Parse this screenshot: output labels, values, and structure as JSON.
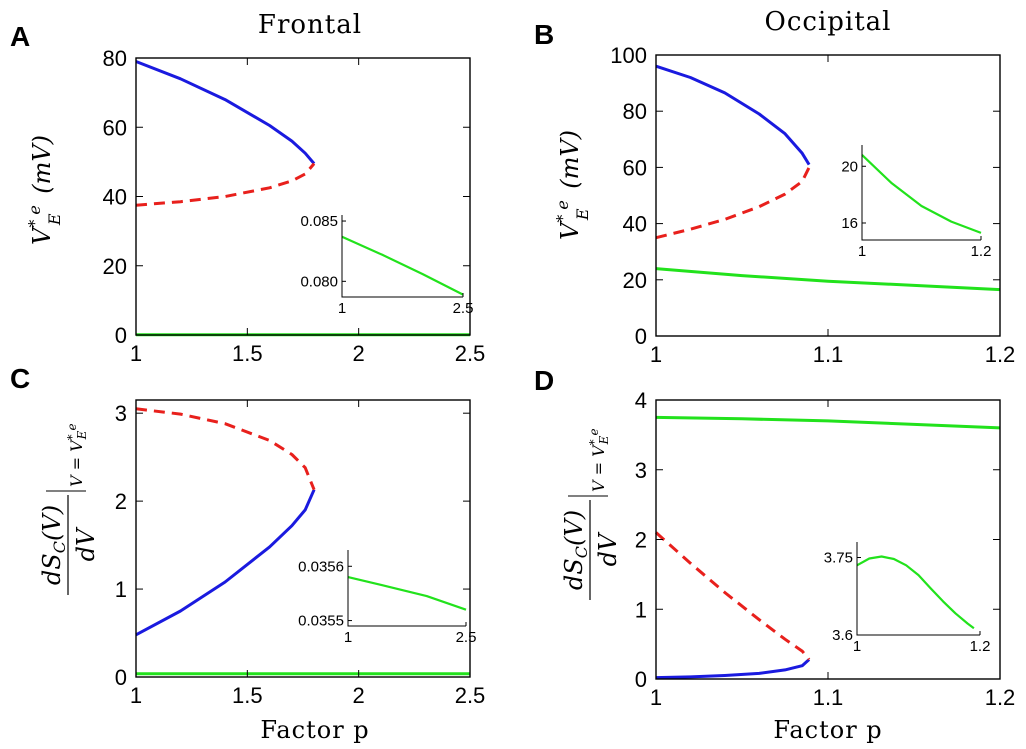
{
  "colors": {
    "blue": "#1a1adf",
    "red": "#e8201c",
    "green": "#22e21c"
  },
  "column_titles": [
    "Frontal",
    "Occipital"
  ],
  "x_axis_label": "Factor p",
  "chart_data": [
    {
      "panel": "A",
      "type": "line",
      "xlim": [
        1,
        2.5
      ],
      "ylim": [
        0,
        80
      ],
      "xticks": [
        1,
        1.5,
        2,
        2.5
      ],
      "yticks": [
        0,
        20,
        40,
        60,
        80
      ],
      "xtick_labels": [
        "1",
        "1.5",
        "2",
        "2.5"
      ],
      "ytick_labels": [
        "0",
        "20",
        "40",
        "60",
        "80"
      ],
      "ylabel": "V*_E^e (mV)",
      "series": [
        {
          "color": "blue",
          "dash": false,
          "x": [
            1,
            1.2,
            1.4,
            1.6,
            1.7,
            1.76,
            1.8
          ],
          "y": [
            79,
            74,
            68,
            60.5,
            56,
            52.5,
            49.5
          ]
        },
        {
          "color": "red",
          "dash": true,
          "x": [
            1,
            1.2,
            1.4,
            1.6,
            1.7,
            1.76,
            1.8
          ],
          "y": [
            37.5,
            38.5,
            40,
            42.5,
            44.5,
            46.5,
            49.5
          ]
        },
        {
          "color": "green",
          "dash": false,
          "x": [
            1,
            2.5
          ],
          "y": [
            0.08,
            0.08
          ]
        }
      ],
      "inset": {
        "xlim": [
          1,
          2.5
        ],
        "ylim": [
          0.0787,
          0.0855
        ],
        "xticks": [
          1,
          2.5
        ],
        "yticks": [
          0.08,
          0.085
        ],
        "xtick_labels": [
          "1",
          "2.5"
        ],
        "ytick_labels": [
          "0.080",
          "0.085"
        ],
        "series": [
          {
            "color": "green",
            "dash": false,
            "x": [
              1,
              1.5,
              2,
              2.5
            ],
            "y": [
              0.0837,
              0.0822,
              0.0806,
              0.0789
            ]
          }
        ]
      }
    },
    {
      "panel": "B",
      "type": "line",
      "xlim": [
        1,
        1.2
      ],
      "ylim": [
        0,
        100
      ],
      "xticks": [
        1,
        1.1,
        1.2
      ],
      "yticks": [
        0,
        20,
        40,
        60,
        80,
        100
      ],
      "xtick_labels": [
        "1",
        "1.1",
        "1.2"
      ],
      "ytick_labels": [
        "0",
        "20",
        "40",
        "60",
        "80",
        "100"
      ],
      "ylabel": "V*_E^e (mV)",
      "series": [
        {
          "color": "blue",
          "dash": false,
          "x": [
            1,
            1.02,
            1.04,
            1.06,
            1.075,
            1.085,
            1.089
          ],
          "y": [
            96,
            92,
            86.5,
            79,
            72,
            65,
            61
          ]
        },
        {
          "color": "red",
          "dash": true,
          "x": [
            1,
            1.02,
            1.04,
            1.06,
            1.075,
            1.085,
            1.089
          ],
          "y": [
            35,
            38,
            41.5,
            46,
            50.5,
            55,
            60
          ]
        },
        {
          "color": "green",
          "dash": false,
          "x": [
            1,
            1.05,
            1.1,
            1.15,
            1.2
          ],
          "y": [
            24,
            21.5,
            19.5,
            18,
            16.5
          ]
        }
      ],
      "inset": {
        "xlim": [
          1,
          1.2
        ],
        "ylim": [
          14.8,
          21.5
        ],
        "xticks": [
          1,
          1.2
        ],
        "yticks": [
          16,
          20
        ],
        "xtick_labels": [
          "1",
          "1.2"
        ],
        "ytick_labels": [
          "16",
          "20"
        ],
        "series": [
          {
            "color": "green",
            "dash": false,
            "x": [
              1,
              1.05,
              1.1,
              1.15,
              1.2
            ],
            "y": [
              20.8,
              18.8,
              17.2,
              16.1,
              15.3
            ]
          }
        ]
      }
    },
    {
      "panel": "C",
      "type": "line",
      "xlim": [
        1,
        2.5
      ],
      "ylim": [
        0,
        3.15
      ],
      "xticks": [
        1,
        1.5,
        2,
        2.5
      ],
      "yticks": [
        0,
        1,
        2,
        3
      ],
      "xtick_labels": [
        "1",
        "1.5",
        "2",
        "2.5"
      ],
      "ytick_labels": [
        "0",
        "1",
        "2",
        "3"
      ],
      "ylabel": "dS_C(V)/dV |V=V*_E^e",
      "series": [
        {
          "color": "blue",
          "dash": false,
          "x": [
            1,
            1.2,
            1.4,
            1.6,
            1.7,
            1.76,
            1.8
          ],
          "y": [
            0.48,
            0.75,
            1.08,
            1.48,
            1.72,
            1.9,
            2.13
          ]
        },
        {
          "color": "red",
          "dash": true,
          "x": [
            1,
            1.2,
            1.4,
            1.6,
            1.7,
            1.76,
            1.8
          ],
          "y": [
            3.05,
            2.99,
            2.88,
            2.69,
            2.53,
            2.38,
            2.13
          ]
        },
        {
          "color": "green",
          "dash": false,
          "x": [
            1,
            2.5
          ],
          "y": [
            0.036,
            0.036
          ]
        }
      ],
      "inset": {
        "xlim": [
          1,
          2.5
        ],
        "ylim": [
          0.03549,
          0.03563
        ],
        "xticks": [
          1,
          2.5
        ],
        "yticks": [
          0.0355,
          0.0356
        ],
        "xtick_labels": [
          "1",
          "2.5"
        ],
        "ytick_labels": [
          "0.0355",
          "0.0356"
        ],
        "series": [
          {
            "color": "green",
            "dash": false,
            "x": [
              1,
              1.5,
              2,
              2.5
            ],
            "y": [
              0.03558,
              0.035563,
              0.035545,
              0.03552
            ]
          }
        ]
      }
    },
    {
      "panel": "D",
      "type": "line",
      "xlim": [
        1,
        1.2
      ],
      "ylim": [
        0,
        4
      ],
      "xticks": [
        1,
        1.1,
        1.2
      ],
      "yticks": [
        0,
        1,
        2,
        3,
        4
      ],
      "xtick_labels": [
        "1",
        "1.1",
        "1.2"
      ],
      "ytick_labels": [
        "0",
        "1",
        "2",
        "3",
        "4"
      ],
      "ylabel": "dS_C(V)/dV |V=V*_E^e",
      "series": [
        {
          "color": "blue",
          "dash": false,
          "x": [
            1,
            1.02,
            1.04,
            1.06,
            1.075,
            1.085,
            1.089
          ],
          "y": [
            0.02,
            0.03,
            0.05,
            0.08,
            0.13,
            0.19,
            0.28
          ]
        },
        {
          "color": "red",
          "dash": true,
          "x": [
            1,
            1.02,
            1.04,
            1.06,
            1.075,
            1.085,
            1.089
          ],
          "y": [
            2.1,
            1.66,
            1.24,
            0.85,
            0.57,
            0.4,
            0.28
          ]
        },
        {
          "color": "green",
          "dash": false,
          "x": [
            1,
            1.05,
            1.1,
            1.15,
            1.2
          ],
          "y": [
            3.75,
            3.73,
            3.7,
            3.65,
            3.6
          ]
        }
      ],
      "inset": {
        "xlim": [
          1,
          1.2
        ],
        "ylim": [
          3.6,
          3.78
        ],
        "xticks": [
          1,
          1.2
        ],
        "yticks": [
          3.6,
          3.75
        ],
        "xtick_labels": [
          "1",
          "1.2"
        ],
        "ytick_labels": [
          "3.6",
          "3.75"
        ],
        "series": [
          {
            "color": "green",
            "dash": false,
            "x": [
              1,
              1.02,
              1.04,
              1.06,
              1.08,
              1.1,
              1.12,
              1.14,
              1.16,
              1.18,
              1.19
            ],
            "y": [
              3.735,
              3.748,
              3.752,
              3.747,
              3.735,
              3.716,
              3.69,
              3.665,
              3.642,
              3.622,
              3.613
            ]
          }
        ]
      }
    }
  ]
}
